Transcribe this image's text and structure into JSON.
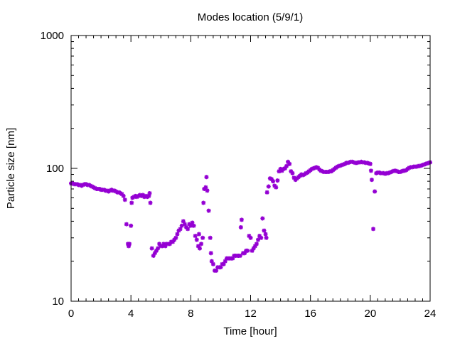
{
  "chart_data": {
    "type": "scatter",
    "title": "Modes location (5/9/1)",
    "xlabel": "Time [hour]",
    "ylabel": "Particle size [nm]",
    "xlim": [
      0,
      24
    ],
    "ylim": [
      10,
      1000
    ],
    "yscale": "log",
    "xticks": [
      0,
      4,
      8,
      12,
      16,
      20,
      24
    ],
    "xtick_labels": [
      "0",
      "4",
      "8",
      "12",
      "16",
      "20",
      "24"
    ],
    "yticks": [
      10,
      100,
      1000
    ],
    "ytick_labels": [
      "10",
      "100",
      "1000"
    ],
    "grid": false,
    "legend": "none",
    "marker": "star",
    "color": "#9400d3",
    "series": [
      {
        "points": [
          [
            0.0,
            77
          ],
          [
            0.1,
            77
          ],
          [
            0.2,
            76
          ],
          [
            0.3,
            76
          ],
          [
            0.4,
            76
          ],
          [
            0.5,
            75
          ],
          [
            0.6,
            75
          ],
          [
            0.7,
            74
          ],
          [
            0.8,
            75
          ],
          [
            0.9,
            76
          ],
          [
            1.0,
            76
          ],
          [
            1.1,
            75
          ],
          [
            1.2,
            75
          ],
          [
            1.3,
            74
          ],
          [
            1.4,
            73
          ],
          [
            1.5,
            72
          ],
          [
            1.6,
            71
          ],
          [
            1.7,
            70
          ],
          [
            1.8,
            70
          ],
          [
            1.9,
            70
          ],
          [
            2.0,
            69
          ],
          [
            2.1,
            69
          ],
          [
            2.2,
            69
          ],
          [
            2.3,
            68
          ],
          [
            2.4,
            68
          ],
          [
            2.5,
            67
          ],
          [
            2.6,
            68
          ],
          [
            2.7,
            69
          ],
          [
            2.8,
            68
          ],
          [
            2.9,
            68
          ],
          [
            3.0,
            67
          ],
          [
            3.1,
            66
          ],
          [
            3.2,
            66
          ],
          [
            3.3,
            65
          ],
          [
            3.4,
            64
          ],
          [
            3.5,
            62
          ],
          [
            3.6,
            58
          ],
          [
            3.7,
            38
          ],
          [
            3.8,
            27
          ],
          [
            3.85,
            26
          ],
          [
            3.9,
            27
          ],
          [
            4.0,
            37
          ],
          [
            4.05,
            55
          ],
          [
            4.1,
            60
          ],
          [
            4.2,
            61
          ],
          [
            4.3,
            62
          ],
          [
            4.4,
            61
          ],
          [
            4.5,
            62
          ],
          [
            4.6,
            63
          ],
          [
            4.7,
            62
          ],
          [
            4.8,
            63
          ],
          [
            4.9,
            61
          ],
          [
            5.0,
            62
          ],
          [
            5.1,
            61
          ],
          [
            5.2,
            62
          ],
          [
            5.25,
            65
          ],
          [
            5.3,
            55
          ],
          [
            5.4,
            25
          ],
          [
            5.5,
            22
          ],
          [
            5.6,
            23
          ],
          [
            5.7,
            24
          ],
          [
            5.8,
            25
          ],
          [
            5.9,
            27
          ],
          [
            6.0,
            26
          ],
          [
            6.1,
            26
          ],
          [
            6.2,
            27
          ],
          [
            6.3,
            26
          ],
          [
            6.4,
            27
          ],
          [
            6.5,
            27
          ],
          [
            6.6,
            27
          ],
          [
            6.7,
            28
          ],
          [
            6.8,
            28
          ],
          [
            6.9,
            29
          ],
          [
            7.0,
            30
          ],
          [
            7.1,
            32
          ],
          [
            7.2,
            34
          ],
          [
            7.3,
            35
          ],
          [
            7.4,
            37
          ],
          [
            7.5,
            40
          ],
          [
            7.6,
            38
          ],
          [
            7.7,
            36
          ],
          [
            7.8,
            35
          ],
          [
            7.9,
            38
          ],
          [
            8.0,
            37
          ],
          [
            8.1,
            39
          ],
          [
            8.2,
            37
          ],
          [
            8.3,
            31
          ],
          [
            8.4,
            29
          ],
          [
            8.5,
            26
          ],
          [
            8.55,
            32
          ],
          [
            8.6,
            25
          ],
          [
            8.7,
            27
          ],
          [
            8.8,
            30
          ],
          [
            8.85,
            55
          ],
          [
            8.9,
            70
          ],
          [
            9.0,
            72
          ],
          [
            9.05,
            86
          ],
          [
            9.1,
            68
          ],
          [
            9.2,
            48
          ],
          [
            9.3,
            30
          ],
          [
            9.35,
            23
          ],
          [
            9.4,
            20
          ],
          [
            9.5,
            19
          ],
          [
            9.6,
            17
          ],
          [
            9.7,
            17
          ],
          [
            9.8,
            18
          ],
          [
            9.9,
            18
          ],
          [
            10.0,
            18
          ],
          [
            10.1,
            19
          ],
          [
            10.2,
            19
          ],
          [
            10.3,
            20
          ],
          [
            10.4,
            21
          ],
          [
            10.5,
            21
          ],
          [
            10.6,
            21
          ],
          [
            10.7,
            21
          ],
          [
            10.8,
            21
          ],
          [
            10.9,
            22
          ],
          [
            11.0,
            22
          ],
          [
            11.1,
            22
          ],
          [
            11.2,
            22
          ],
          [
            11.3,
            22
          ],
          [
            11.35,
            36
          ],
          [
            11.4,
            41
          ],
          [
            11.5,
            23
          ],
          [
            11.6,
            23
          ],
          [
            11.7,
            24
          ],
          [
            11.8,
            24
          ],
          [
            11.9,
            31
          ],
          [
            12.0,
            30
          ],
          [
            12.1,
            24
          ],
          [
            12.2,
            25
          ],
          [
            12.3,
            26
          ],
          [
            12.4,
            27
          ],
          [
            12.5,
            29
          ],
          [
            12.6,
            31
          ],
          [
            12.7,
            30
          ],
          [
            12.8,
            42
          ],
          [
            12.9,
            34
          ],
          [
            13.0,
            32
          ],
          [
            13.05,
            30
          ],
          [
            13.1,
            66
          ],
          [
            13.2,
            73
          ],
          [
            13.3,
            84
          ],
          [
            13.4,
            83
          ],
          [
            13.5,
            80
          ],
          [
            13.6,
            74
          ],
          [
            13.7,
            72
          ],
          [
            13.8,
            81
          ],
          [
            13.9,
            95
          ],
          [
            14.0,
            99
          ],
          [
            14.1,
            96
          ],
          [
            14.2,
            99
          ],
          [
            14.3,
            100
          ],
          [
            14.4,
            104
          ],
          [
            14.5,
            112
          ],
          [
            14.6,
            108
          ],
          [
            14.7,
            95
          ],
          [
            14.8,
            92
          ],
          [
            14.9,
            85
          ],
          [
            15.0,
            82
          ],
          [
            15.1,
            84
          ],
          [
            15.2,
            86
          ],
          [
            15.3,
            88
          ],
          [
            15.4,
            90
          ],
          [
            15.5,
            89
          ],
          [
            15.6,
            90
          ],
          [
            15.7,
            92
          ],
          [
            15.8,
            93
          ],
          [
            15.9,
            95
          ],
          [
            16.0,
            97
          ],
          [
            16.1,
            99
          ],
          [
            16.2,
            100
          ],
          [
            16.3,
            101
          ],
          [
            16.4,
            102
          ],
          [
            16.5,
            101
          ],
          [
            16.6,
            98
          ],
          [
            16.7,
            96
          ],
          [
            16.8,
            95
          ],
          [
            16.9,
            94
          ],
          [
            17.0,
            94
          ],
          [
            17.1,
            94
          ],
          [
            17.2,
            94
          ],
          [
            17.3,
            95
          ],
          [
            17.4,
            95
          ],
          [
            17.5,
            97
          ],
          [
            17.6,
            99
          ],
          [
            17.7,
            101
          ],
          [
            17.8,
            103
          ],
          [
            17.9,
            104
          ],
          [
            18.0,
            105
          ],
          [
            18.1,
            106
          ],
          [
            18.2,
            107
          ],
          [
            18.3,
            108
          ],
          [
            18.4,
            110
          ],
          [
            18.5,
            110
          ],
          [
            18.6,
            111
          ],
          [
            18.7,
            112
          ],
          [
            18.8,
            112
          ],
          [
            18.9,
            111
          ],
          [
            19.0,
            110
          ],
          [
            19.1,
            110
          ],
          [
            19.2,
            111
          ],
          [
            19.3,
            111
          ],
          [
            19.4,
            112
          ],
          [
            19.5,
            111
          ],
          [
            19.6,
            111
          ],
          [
            19.7,
            110
          ],
          [
            19.8,
            110
          ],
          [
            19.9,
            109
          ],
          [
            20.0,
            108
          ],
          [
            20.05,
            96
          ],
          [
            20.1,
            82
          ],
          [
            20.2,
            35
          ],
          [
            20.3,
            67
          ],
          [
            20.4,
            92
          ],
          [
            20.5,
            93
          ],
          [
            20.6,
            93
          ],
          [
            20.7,
            92
          ],
          [
            20.8,
            92
          ],
          [
            20.9,
            92
          ],
          [
            21.0,
            91
          ],
          [
            21.1,
            92
          ],
          [
            21.2,
            92
          ],
          [
            21.3,
            93
          ],
          [
            21.4,
            94
          ],
          [
            21.5,
            95
          ],
          [
            21.6,
            96
          ],
          [
            21.7,
            96
          ],
          [
            21.8,
            95
          ],
          [
            21.9,
            94
          ],
          [
            22.0,
            94
          ],
          [
            22.1,
            95
          ],
          [
            22.2,
            96
          ],
          [
            22.3,
            96
          ],
          [
            22.4,
            97
          ],
          [
            22.5,
            99
          ],
          [
            22.6,
            101
          ],
          [
            22.7,
            102
          ],
          [
            22.8,
            102
          ],
          [
            22.9,
            103
          ],
          [
            23.0,
            103
          ],
          [
            23.1,
            103
          ],
          [
            23.2,
            104
          ],
          [
            23.3,
            104
          ],
          [
            23.4,
            105
          ],
          [
            23.5,
            106
          ],
          [
            23.6,
            107
          ],
          [
            23.7,
            108
          ],
          [
            23.8,
            109
          ],
          [
            23.9,
            110
          ],
          [
            24.0,
            111
          ]
        ]
      }
    ]
  }
}
